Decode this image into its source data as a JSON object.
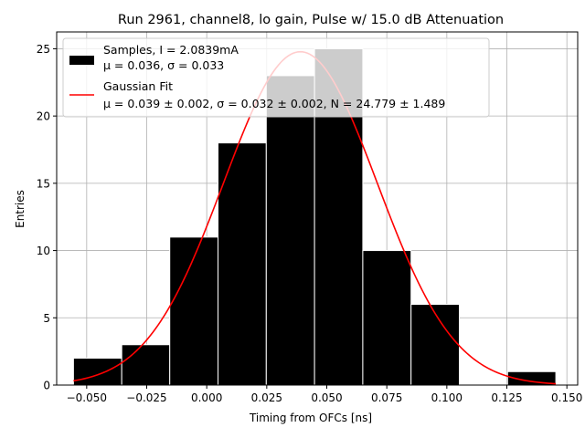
{
  "chart_data": {
    "type": "bar",
    "title": "Run 2961, channel8, lo gain, Pulse w/ 15.0 dB Attenuation",
    "xlabel": "Timing from OFCs [ns]",
    "ylabel": "Entries",
    "xlim": [
      -0.0625,
      0.1545
    ],
    "ylim": [
      0,
      26.25
    ],
    "xticks": [
      "−0.050",
      "−0.025",
      "0.000",
      "0.025",
      "0.050",
      "0.075",
      "0.100",
      "0.125",
      "0.150"
    ],
    "xtick_values": [
      -0.05,
      -0.025,
      0.0,
      0.025,
      0.05,
      0.075,
      0.1,
      0.125,
      0.15
    ],
    "yticks": [
      "0",
      "5",
      "10",
      "15",
      "20",
      "25"
    ],
    "ytick_values": [
      0,
      5,
      10,
      15,
      20,
      25
    ],
    "grid": true,
    "histogram": {
      "bin_edges": [
        -0.0555,
        -0.0354,
        -0.0154,
        0.0047,
        0.0248,
        0.0449,
        0.065,
        0.0851,
        0.1052,
        0.1253,
        0.1454
      ],
      "counts": [
        2,
        3,
        11,
        18,
        23,
        25,
        10,
        6,
        0,
        1
      ],
      "color": "#000000",
      "edgecolor": "#ffffff"
    },
    "fit": {
      "mu": 0.039,
      "sigma": 0.032,
      "N": 24.779,
      "x_range": [
        -0.0555,
        0.1454
      ],
      "color": "#ff0000"
    },
    "legend": {
      "location": "top-left",
      "entries": [
        {
          "line1": "Samples, I = 2.0839mA",
          "line2": "μ = 0.036, σ = 0.033",
          "symbol": "patch",
          "color": "#000000"
        },
        {
          "line1": "Gaussian Fit",
          "line2": "μ = 0.039 ± 0.002, σ = 0.032 ± 0.002, N = 24.779 ± 1.489",
          "symbol": "line",
          "color": "#ff0000"
        }
      ]
    }
  }
}
